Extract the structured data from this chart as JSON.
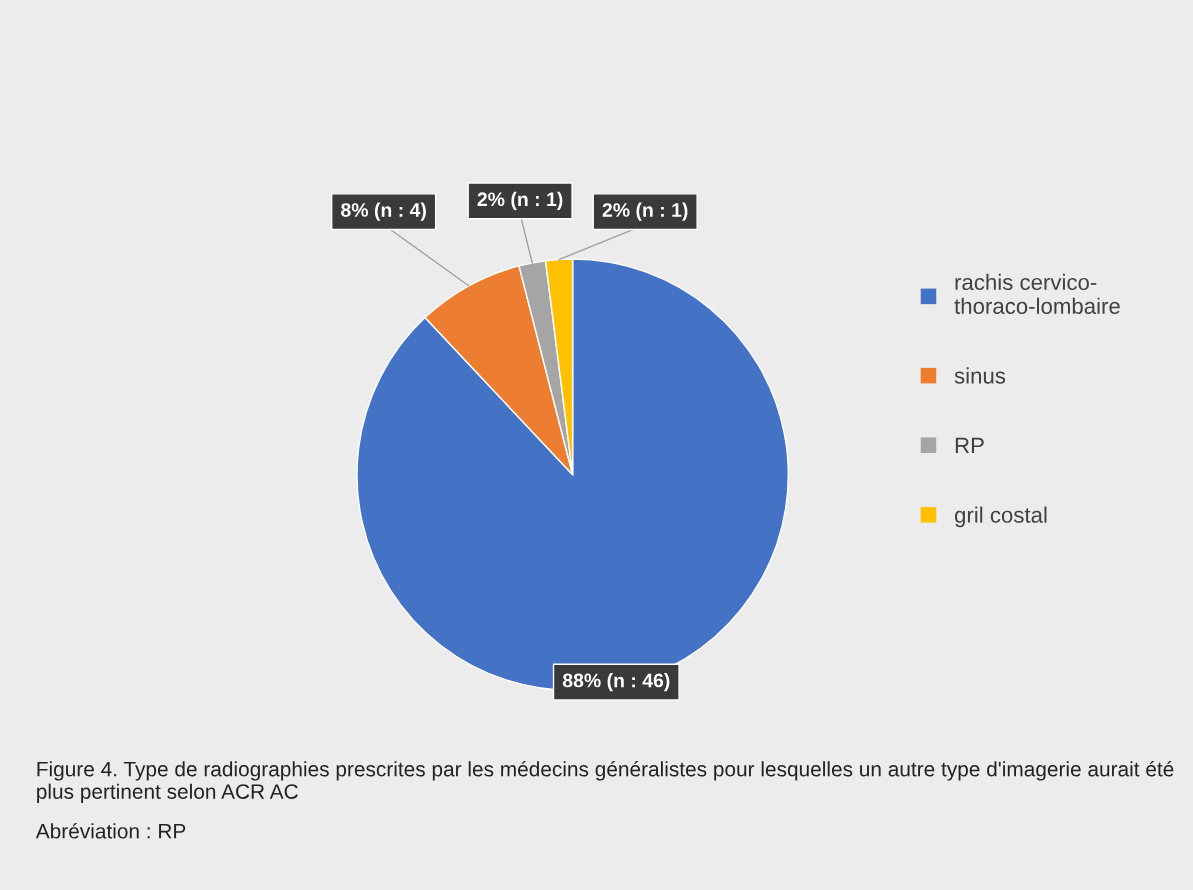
{
  "chart_data": {
    "type": "pie",
    "categories": [
      "rachis cervico-thoraco-lombaire",
      "sinus",
      "RP",
      "gril costal"
    ],
    "values": [
      88,
      8,
      2,
      2
    ],
    "colors": [
      "#4472c4",
      "#ed7d31",
      "#a5a5a5",
      "#ffc000"
    ],
    "value_labels": [
      "88% (n : 46)",
      "8% (n : 4)",
      "2% (n : 1)",
      "2% (n : 1)"
    ],
    "legend": "right",
    "annotations": [
      "Figure 4. Type de radiographies prescrites par les médecins généralistes pour lesquelles un autre type d'imagerie aurait été plus pertinent selon ACR AC",
      "Abréviation : RP"
    ]
  }
}
